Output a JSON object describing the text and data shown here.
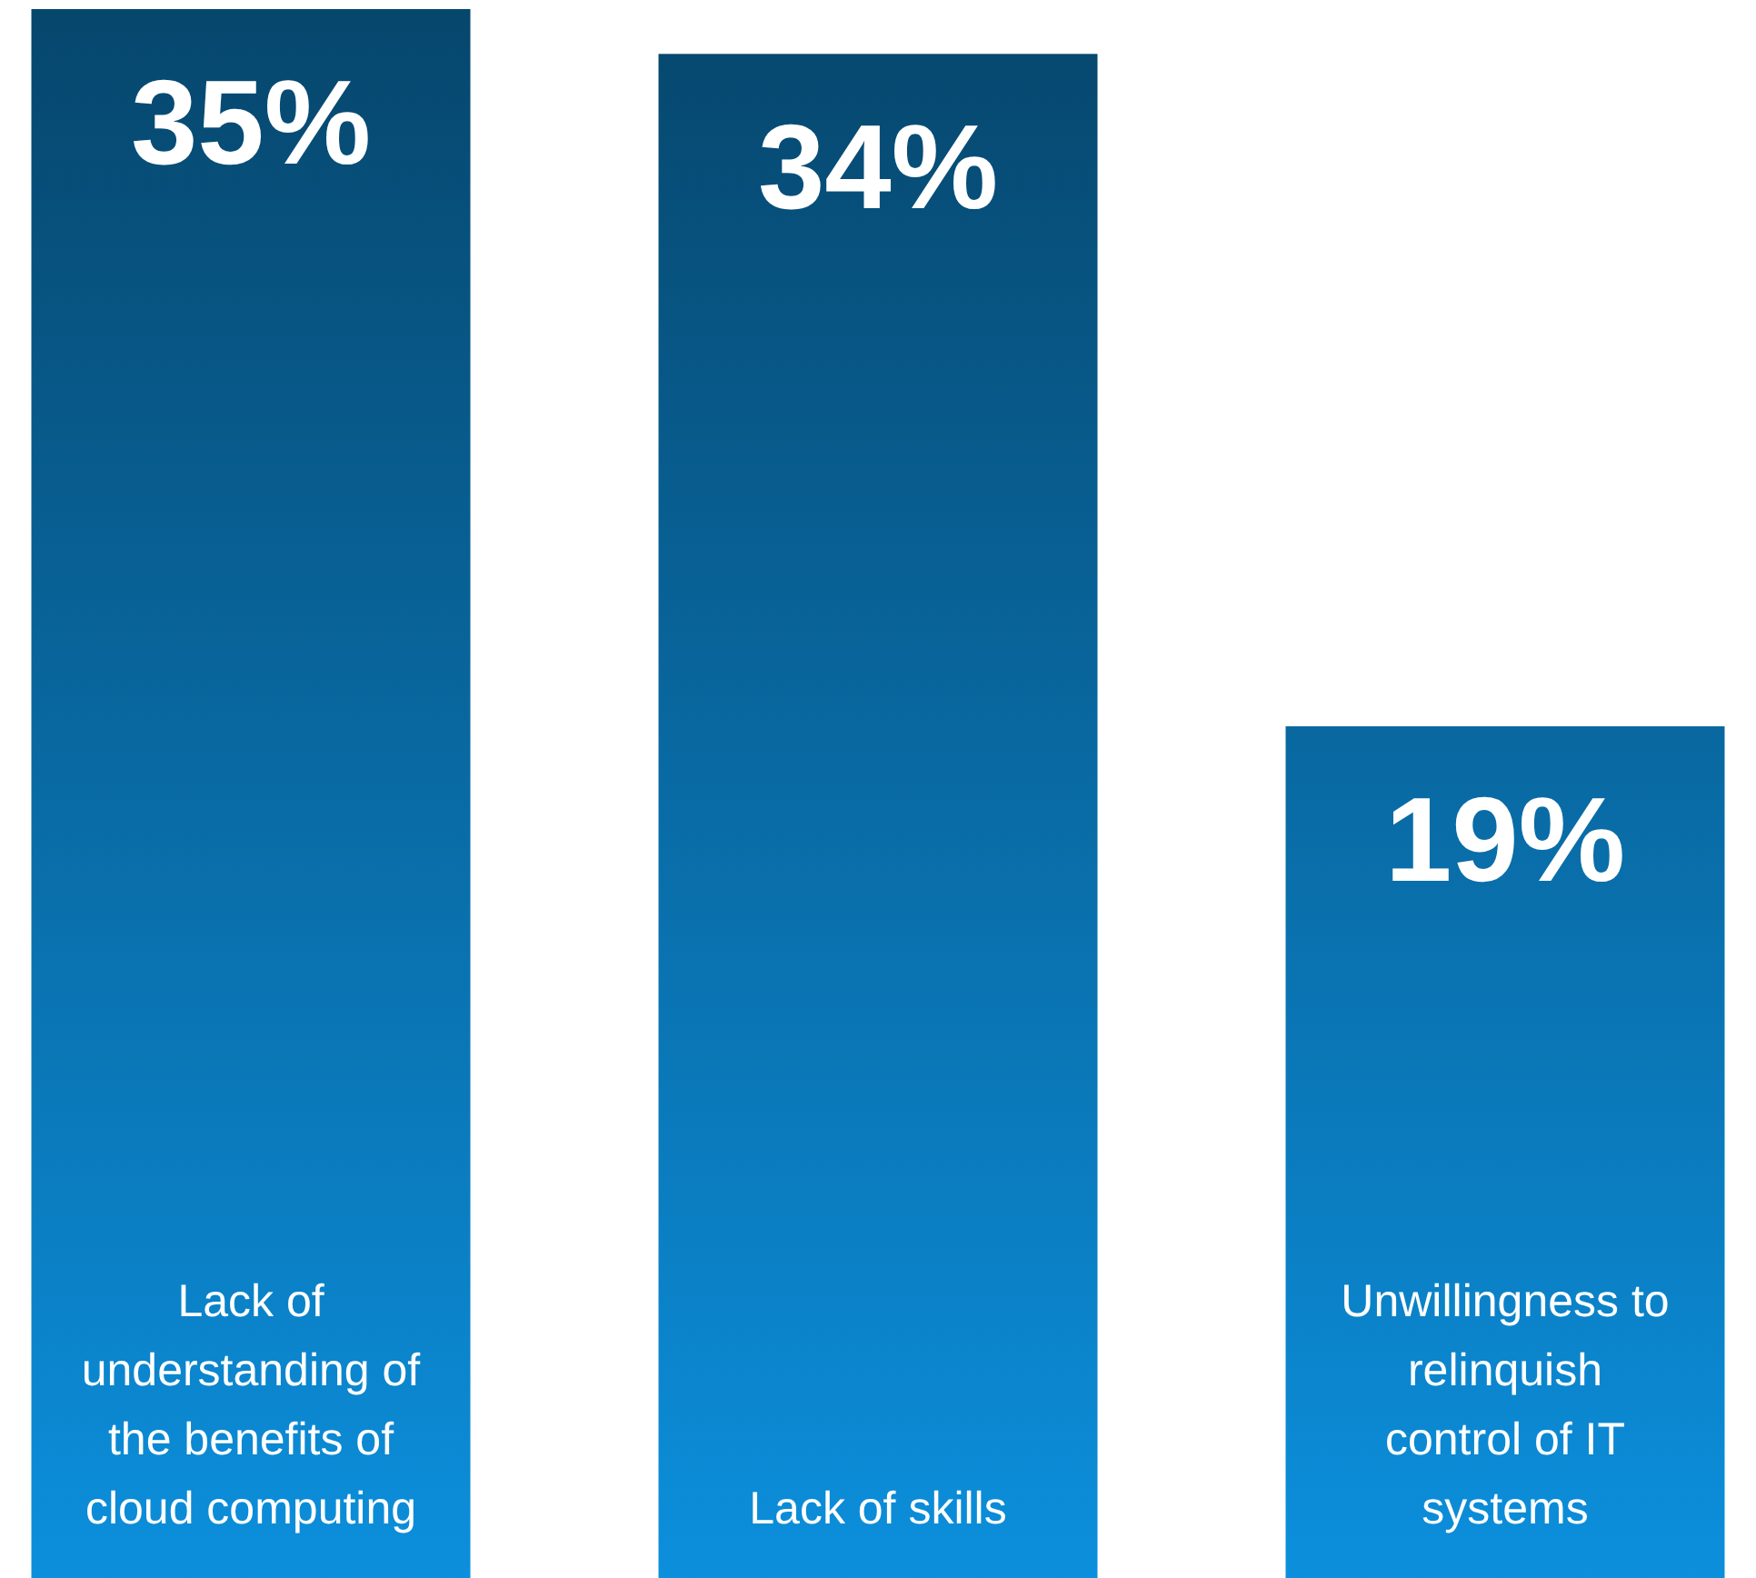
{
  "chart_data": {
    "type": "bar",
    "categories": [
      "Lack of understanding of the benefits of cloud computing",
      "Lack of skills",
      "Unwillingness to relinquish control of IT systems"
    ],
    "values": [
      35,
      34,
      19
    ],
    "value_labels": [
      "35%",
      "34%",
      "19%"
    ],
    "color": "#0a78b8"
  }
}
